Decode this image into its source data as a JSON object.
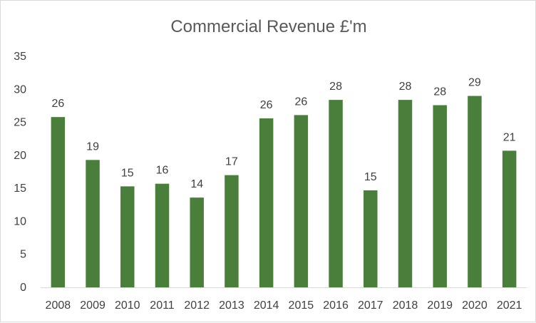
{
  "chart_data": {
    "type": "bar",
    "title": "Commercial Revenue £'m",
    "categories": [
      "2008",
      "2009",
      "2010",
      "2011",
      "2012",
      "2013",
      "2014",
      "2015",
      "2016",
      "2017",
      "2018",
      "2019",
      "2020",
      "2021"
    ],
    "values": [
      25.8,
      19.3,
      15.3,
      15.7,
      13.6,
      17.0,
      25.6,
      26.1,
      28.4,
      14.7,
      28.4,
      27.6,
      29.0,
      20.7
    ],
    "data_labels": [
      "26",
      "19",
      "15",
      "16",
      "14",
      "17",
      "26",
      "26",
      "28",
      "15",
      "28",
      "28",
      "29",
      "21"
    ],
    "ylim": [
      0,
      35
    ],
    "yticks": [
      "0",
      "5",
      "10",
      "15",
      "20",
      "25",
      "30",
      "35"
    ],
    "xlabel": "",
    "ylabel": "",
    "grid": false,
    "legend": "none",
    "bar_color": "#4a7f3b"
  }
}
